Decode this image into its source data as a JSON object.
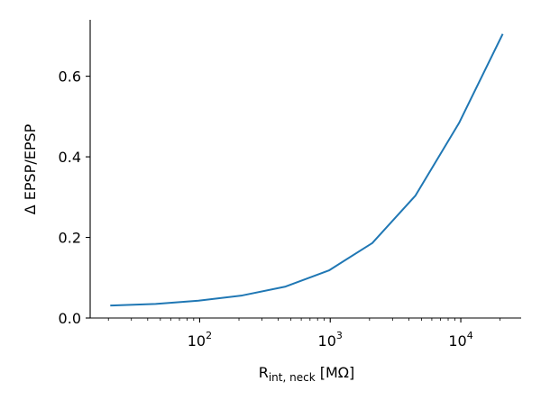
{
  "chart_data": {
    "type": "line",
    "title": "",
    "xlabel": {
      "main": "R",
      "subscript": "int, neck",
      "unit": " [MΩ]"
    },
    "ylabel": "Δ EPSP/EPSP",
    "xscale": "log",
    "xlim": [
      14.5,
      29000
    ],
    "ylim": [
      0.0,
      0.74
    ],
    "xticks": [
      {
        "value": 100,
        "base": "10",
        "exp": "2"
      },
      {
        "value": 1000,
        "base": "10",
        "exp": "3"
      },
      {
        "value": 10000,
        "base": "10",
        "exp": "4"
      }
    ],
    "yticks": [
      {
        "value": 0.0,
        "label": "0.0"
      },
      {
        "value": 0.2,
        "label": "0.2"
      },
      {
        "value": 0.4,
        "label": "0.4"
      },
      {
        "value": 0.6,
        "label": "0.6"
      }
    ],
    "grid": false,
    "series": [
      {
        "color": "#1f77b4",
        "x": [
          21,
          46,
          98,
          212,
          455,
          977,
          2100,
          4500,
          9700,
          20800
        ],
        "y": [
          0.031,
          0.035,
          0.043,
          0.056,
          0.078,
          0.118,
          0.186,
          0.304,
          0.484,
          0.703
        ]
      }
    ]
  }
}
